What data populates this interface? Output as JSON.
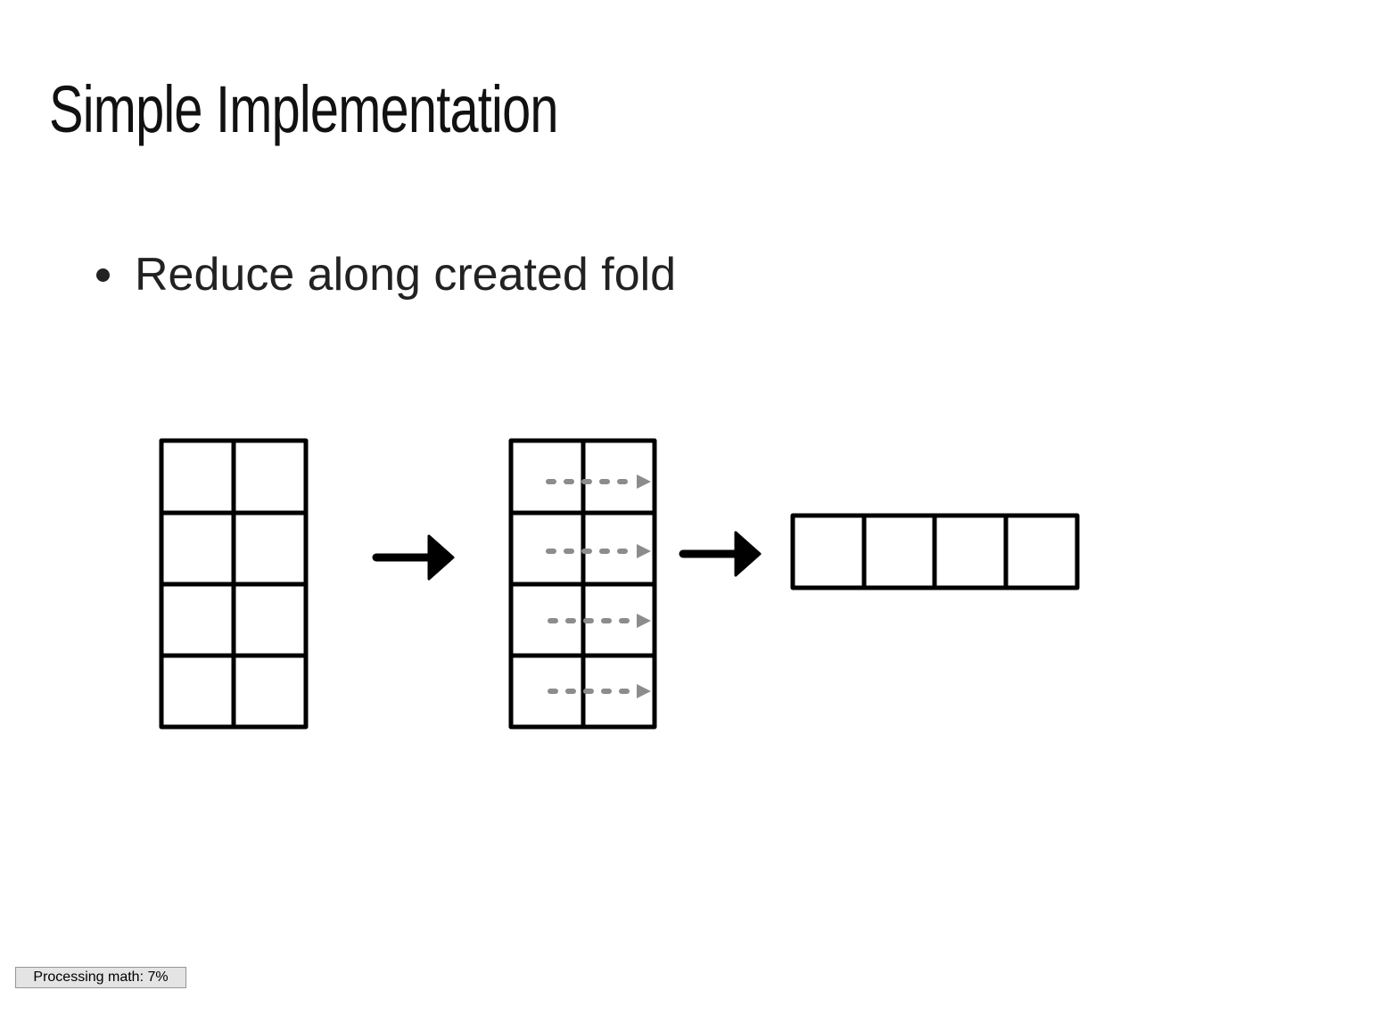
{
  "slide": {
    "title": "Simple Implementation",
    "bullets": [
      {
        "text": "Reduce along created fold"
      }
    ]
  },
  "diagram": {
    "input_grid": {
      "rows": 4,
      "cols": 2
    },
    "folded_grid": {
      "rows": 4,
      "cols": 2,
      "fold_arrows": 4
    },
    "output_row": {
      "cells": 4
    },
    "transition_arrows": 2,
    "colors": {
      "stroke": "#000000",
      "fold_arrow": "#8c8c8c"
    }
  },
  "status": {
    "label": "Processing math: 7%",
    "progress_percent": 7
  }
}
